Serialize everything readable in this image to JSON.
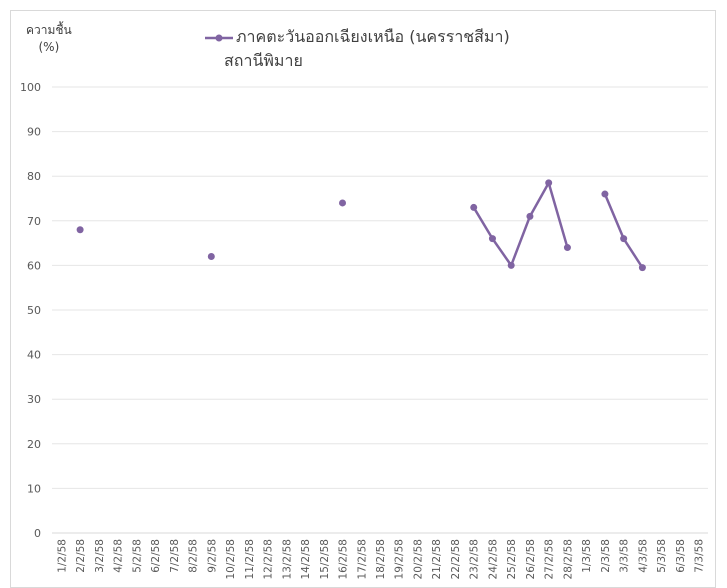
{
  "chart_data": {
    "type": "line",
    "ylabel_line1": "ความชื้น",
    "ylabel_line2": "(%)",
    "ylim": [
      0,
      100
    ],
    "yticks": [
      0,
      10,
      20,
      30,
      40,
      50,
      60,
      70,
      80,
      90,
      100
    ],
    "grid": true,
    "legend_position": "top",
    "categories": [
      "1/2/58",
      "2/2/58",
      "3/2/58",
      "4/2/58",
      "5/2/58",
      "6/2/58",
      "7/2/58",
      "8/2/58",
      "9/2/58",
      "10/2/58",
      "11/2/58",
      "12/2/58",
      "13/2/58",
      "14/2/58",
      "15/2/58",
      "16/2/58",
      "17/2/58",
      "18/2/58",
      "19/2/58",
      "20/2/58",
      "21/2/58",
      "22/2/58",
      "23/2/58",
      "24/2/58",
      "25/2/58",
      "26/2/58",
      "27/2/58",
      "28/2/58",
      "1/3/58",
      "2/3/58",
      "3/3/58",
      "4/3/58",
      "5/3/58",
      "6/3/58",
      "7/3/58"
    ],
    "series": [
      {
        "name": "ภาคตะวันออกเฉียงเหนือ (นครราชสีมา)",
        "name_line2": "สถานีพิมาย",
        "color": "#8064a2",
        "values": [
          null,
          68,
          null,
          null,
          null,
          null,
          null,
          null,
          62,
          null,
          null,
          null,
          null,
          null,
          null,
          74,
          null,
          null,
          null,
          null,
          null,
          null,
          73,
          66,
          60,
          71,
          78.5,
          64,
          null,
          76,
          66,
          59.5,
          null,
          null,
          null
        ]
      }
    ]
  }
}
